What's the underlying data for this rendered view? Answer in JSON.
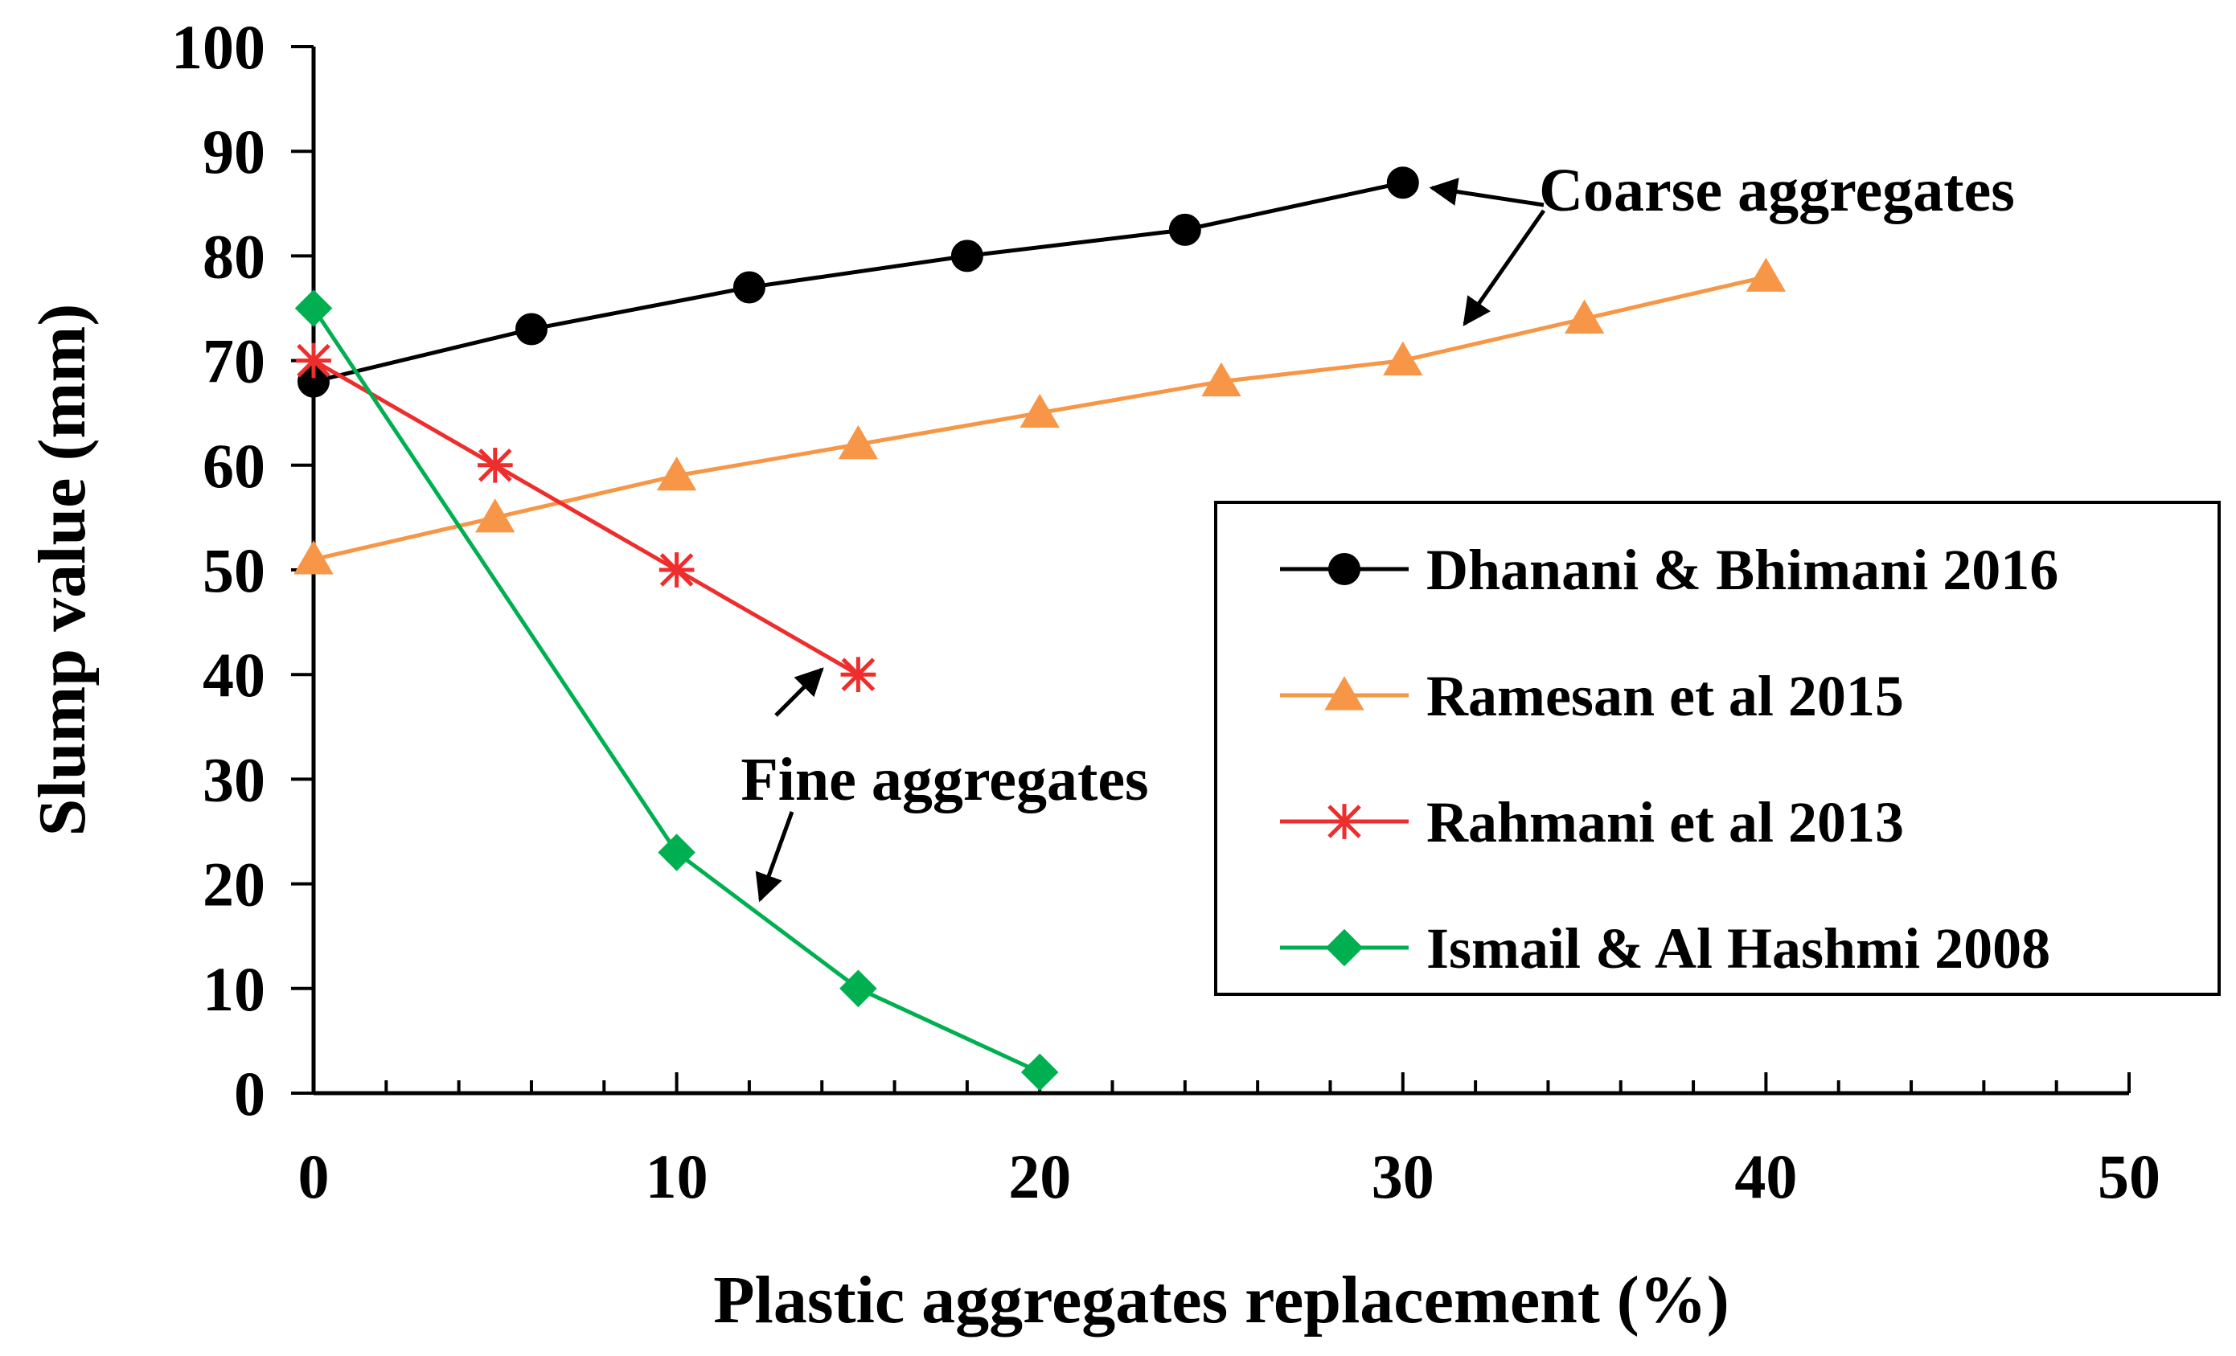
{
  "chart_data": {
    "type": "line",
    "title": "",
    "xlabel": "Plastic aggregates replacement (%)",
    "ylabel": "Slump value (mm)",
    "xlim": [
      0,
      50
    ],
    "ylim": [
      0,
      100
    ],
    "xticks": [
      "0",
      "10",
      "20",
      "30",
      "40",
      "50"
    ],
    "yticks": [
      "0",
      "10",
      "20",
      "30",
      "40",
      "50",
      "60",
      "70",
      "80",
      "90",
      "100"
    ],
    "grid": false,
    "legend_position": "right",
    "series": [
      {
        "name": "Dhanani & Bhimani 2016",
        "color": "#000000",
        "marker": "circle",
        "x": [
          0,
          6,
          12,
          18,
          24,
          30
        ],
        "y": [
          68,
          73,
          77,
          80,
          82.5,
          87
        ]
      },
      {
        "name": "Ramesan et al 2015",
        "color": "#F79646",
        "marker": "triangle",
        "x": [
          0,
          5,
          10,
          15,
          20,
          25,
          30,
          35,
          40
        ],
        "y": [
          51,
          55,
          59,
          62,
          65,
          68,
          70,
          74,
          78
        ]
      },
      {
        "name": "Rahmani et al 2013",
        "color": "#EE2D2D",
        "marker": "star",
        "x": [
          0,
          5,
          10,
          15
        ],
        "y": [
          70,
          60,
          50,
          40
        ]
      },
      {
        "name": "Ismail & Al Hashmi 2008",
        "color": "#00B050",
        "marker": "diamond",
        "x": [
          0,
          10,
          15,
          20
        ],
        "y": [
          75,
          23,
          10,
          2
        ]
      }
    ],
    "annotations": [
      {
        "text": "Coarse aggregates",
        "arrows_to": [
          [
            30.8,
            86.5
          ],
          [
            31.7,
            73.5
          ]
        ]
      },
      {
        "text": "Fine aggregates",
        "arrows_to": [
          [
            14,
            40.5
          ],
          [
            12.3,
            18.5
          ]
        ]
      }
    ]
  }
}
